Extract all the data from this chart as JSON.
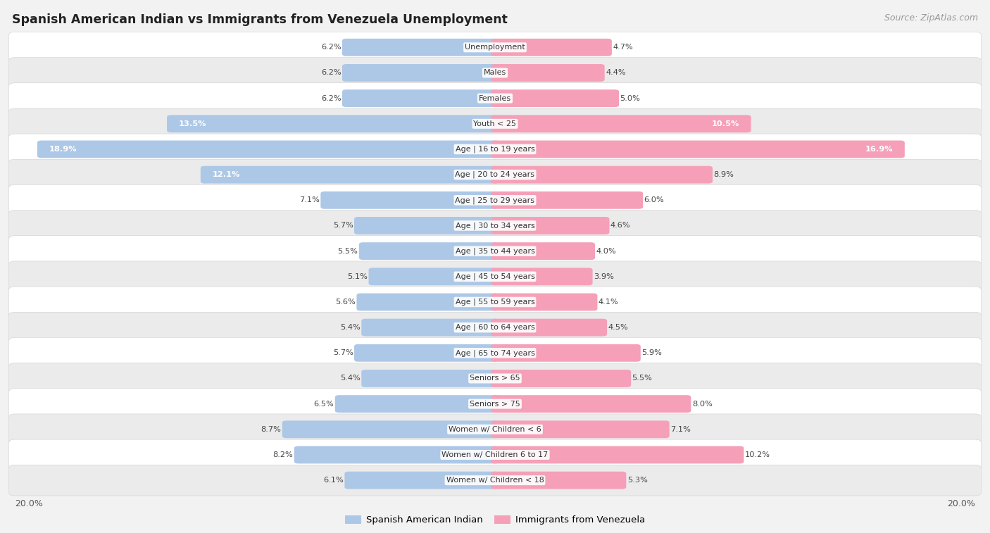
{
  "title": "Spanish American Indian vs Immigrants from Venezuela Unemployment",
  "source": "Source: ZipAtlas.com",
  "categories": [
    "Unemployment",
    "Males",
    "Females",
    "Youth < 25",
    "Age | 16 to 19 years",
    "Age | 20 to 24 years",
    "Age | 25 to 29 years",
    "Age | 30 to 34 years",
    "Age | 35 to 44 years",
    "Age | 45 to 54 years",
    "Age | 55 to 59 years",
    "Age | 60 to 64 years",
    "Age | 65 to 74 years",
    "Seniors > 65",
    "Seniors > 75",
    "Women w/ Children < 6",
    "Women w/ Children 6 to 17",
    "Women w/ Children < 18"
  ],
  "left_values": [
    6.2,
    6.2,
    6.2,
    13.5,
    18.9,
    12.1,
    7.1,
    5.7,
    5.5,
    5.1,
    5.6,
    5.4,
    5.7,
    5.4,
    6.5,
    8.7,
    8.2,
    6.1
  ],
  "right_values": [
    4.7,
    4.4,
    5.0,
    10.5,
    16.9,
    8.9,
    6.0,
    4.6,
    4.0,
    3.9,
    4.1,
    4.5,
    5.9,
    5.5,
    8.0,
    7.1,
    10.2,
    5.3
  ],
  "left_color": "#adc8e6",
  "right_color": "#f5a0b8",
  "legend_left": "Spanish American Indian",
  "legend_right": "Immigrants from Venezuela",
  "axis_max": 20.0,
  "background_color": "#f2f2f2",
  "row_bg_colors": [
    "#ffffff",
    "#ebebeb"
  ],
  "title_color": "#222222",
  "source_color": "#999999",
  "label_color": "#555555"
}
